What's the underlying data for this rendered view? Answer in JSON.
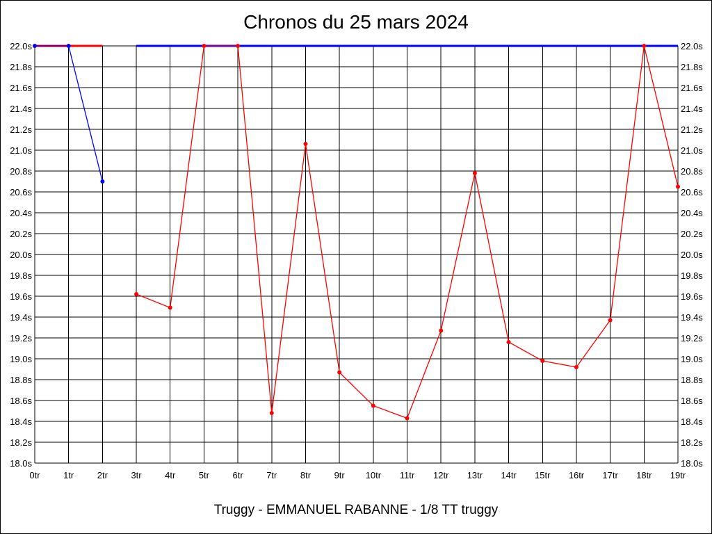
{
  "chart_data": {
    "type": "line",
    "title": "Chronos du 25 mars 2024",
    "subtitle": "Truggy - EMMANUEL RABANNE - 1/8 TT truggy",
    "xlabel": "",
    "ylabel": "",
    "x_tick_labels": [
      "0tr",
      "1tr",
      "2tr",
      "3tr",
      "4tr",
      "5tr",
      "6tr",
      "7tr",
      "8tr",
      "9tr",
      "10tr",
      "11tr",
      "12tr",
      "13tr",
      "14tr",
      "15tr",
      "16tr",
      "17tr",
      "18tr",
      "19tr"
    ],
    "y_tick_labels": [
      "18.0s",
      "18.2s",
      "18.4s",
      "18.6s",
      "18.8s",
      "19.0s",
      "19.2s",
      "19.4s",
      "19.6s",
      "19.8s",
      "20.0s",
      "20.2s",
      "20.4s",
      "20.6s",
      "20.8s",
      "21.0s",
      "21.2s",
      "21.4s",
      "21.6s",
      "21.8s",
      "22.0s"
    ],
    "xlim": [
      0,
      19
    ],
    "ylim": [
      18.0,
      22.0
    ],
    "grid": true,
    "series": [
      {
        "color": "#0000ff",
        "points": [
          [
            0,
            22.0
          ],
          [
            1,
            22.0
          ],
          [
            2,
            20.7
          ]
        ]
      },
      {
        "color": "#ff0000",
        "points": [
          [
            3,
            19.62
          ],
          [
            4,
            19.49
          ],
          [
            5,
            22.0
          ],
          [
            6,
            22.0
          ],
          [
            7,
            18.48
          ],
          [
            8,
            21.06
          ],
          [
            9,
            18.87
          ],
          [
            10,
            18.55
          ],
          [
            11,
            18.43
          ],
          [
            12,
            19.27
          ],
          [
            13,
            20.78
          ],
          [
            14,
            19.16
          ],
          [
            15,
            18.98
          ],
          [
            16,
            18.92
          ],
          [
            17,
            19.37
          ],
          [
            18,
            22.0
          ],
          [
            19,
            20.65
          ]
        ]
      }
    ],
    "cap_segments": [
      {
        "color": "#ff0000",
        "x": [
          0,
          2
        ],
        "y": 22.0
      },
      {
        "color": "#0000ff",
        "x": [
          3,
          19
        ],
        "y": 22.0
      }
    ]
  }
}
